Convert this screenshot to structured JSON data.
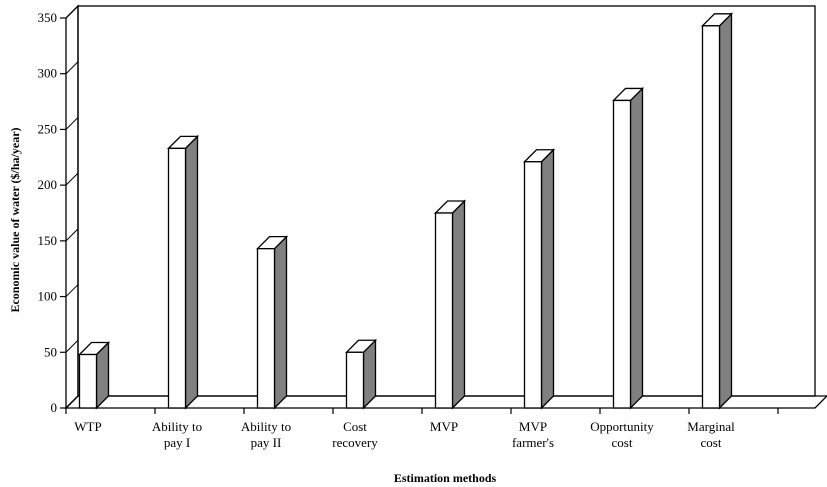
{
  "chart_data": {
    "type": "bar",
    "categories": [
      [
        "WTP"
      ],
      [
        "Ability to",
        "pay I"
      ],
      [
        "Ability to",
        "pay II"
      ],
      [
        "Cost",
        "recovery"
      ],
      [
        "MVP"
      ],
      [
        "MVP",
        "farmer's"
      ],
      [
        "Opportunity",
        "cost"
      ],
      [
        "Marginal",
        "cost"
      ]
    ],
    "values": [
      48,
      233,
      143,
      50,
      175,
      221,
      276,
      343
    ],
    "title": "",
    "xlabel": "Estimation methods",
    "ylabel": "Economic value of water ($/ha/year)",
    "ylim": [
      0,
      350
    ],
    "yticks": [
      0,
      50,
      100,
      150,
      200,
      250,
      300,
      350
    ],
    "grid": false,
    "style": "3d-column",
    "colors": {
      "bar_front": "#ffffff",
      "bar_side": "#808080",
      "bar_top": "#ffffff",
      "stroke": "#000000"
    }
  }
}
